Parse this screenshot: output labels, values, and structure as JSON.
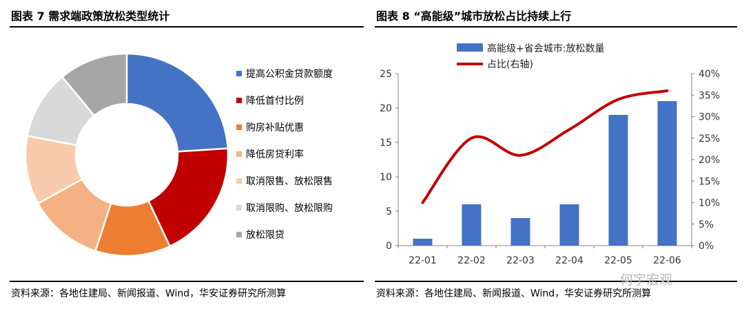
{
  "left": {
    "title": "图表 7  需求端政策放松类型统计",
    "source": "资料来源：各地住建局、新闻报道、Wind，华安证券研究所测算"
  },
  "right": {
    "title": "图表 8  “高能级”城市放松占比持续上行",
    "source": "资料来源：各地住建局、新闻报道、Wind，华安证券研究所测算"
  },
  "watermark": "何宇宏观",
  "chart_data": [
    {
      "type": "pie",
      "donut": true,
      "title": "",
      "categories": [
        "提高公积金贷款额度",
        "降低首付比例",
        "购房补贴优惠",
        "降低房贷利率",
        "取消限售、放松限售",
        "取消限购、放松限购",
        "放松限贷"
      ],
      "values": [
        24,
        19,
        12,
        12,
        11,
        11,
        11
      ],
      "colors": [
        "#4472C4",
        "#C00000",
        "#ED7D31",
        "#F4B183",
        "#F8CBAD",
        "#D9D9D9",
        "#A6A6A6"
      ],
      "legend_position": "right"
    },
    {
      "type": "bar",
      "title": "",
      "categories": [
        "22-01",
        "22-02",
        "22-03",
        "22-04",
        "22-05",
        "22-06"
      ],
      "series": [
        {
          "name": "高能级+省会城市:放松数量",
          "type": "bar",
          "axis": "left",
          "color": "#4472C4",
          "values": [
            1,
            6,
            4,
            6,
            19,
            21
          ]
        },
        {
          "name": "占比(右轴)",
          "type": "line",
          "axis": "right",
          "color": "#C00000",
          "values": [
            10,
            25,
            21,
            27,
            34,
            36
          ]
        }
      ],
      "ylim": [
        0,
        25
      ],
      "yticks": [
        "0",
        "5",
        "10",
        "15",
        "20",
        "25"
      ],
      "y2lim": [
        0,
        40
      ],
      "y2ticks": [
        "0%",
        "5%",
        "10%",
        "15%",
        "20%",
        "25%",
        "30%",
        "35%",
        "40%"
      ],
      "grid": false,
      "legend_position": "top"
    }
  ]
}
